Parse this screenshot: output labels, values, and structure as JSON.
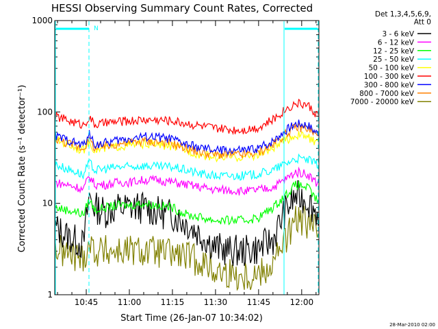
{
  "chart_data": {
    "type": "line",
    "title": "HESSI Observing Summary Count Rates, Corrected",
    "xlabel": "Start Time (26-Jan-07 10:34:02)",
    "ylabel": "Corrected Count Rate (s⁻¹ detector⁻¹)",
    "yscale": "log",
    "ylim": [
      1,
      1000
    ],
    "xlim": [
      "10:34:02",
      "12:06:00"
    ],
    "x_ticks": [
      "10:45",
      "11:00",
      "11:15",
      "11:30",
      "11:45",
      "12:00"
    ],
    "y_ticks": [
      "1",
      "10",
      "100",
      "1000"
    ],
    "legend_title": [
      "Det 1,3,4,5,6,9,",
      "Att 0"
    ],
    "legend_position": "right",
    "x": [
      "10:34",
      "10:38",
      "10:42",
      "10:44",
      "10:46",
      "10:48",
      "10:52",
      "10:56",
      "11:00",
      "11:05",
      "11:10",
      "11:15",
      "11:20",
      "11:25",
      "11:30",
      "11:35",
      "11:40",
      "11:45",
      "11:50",
      "11:54",
      "11:58",
      "12:02",
      "12:05"
    ],
    "series": [
      {
        "name": "3 - 6 keV",
        "color": "#000000",
        "values": [
          5.5,
          4.5,
          3.8,
          3.5,
          12,
          9,
          8,
          9,
          9,
          9,
          8,
          7.5,
          6,
          4.5,
          3.3,
          3.0,
          3.0,
          3.2,
          4,
          8,
          12,
          11,
          8
        ]
      },
      {
        "name": "6 - 12 keV",
        "color": "#ff00ff",
        "values": [
          17,
          16,
          15,
          14,
          20,
          16,
          16,
          17,
          17,
          18,
          18,
          17,
          16,
          15,
          14,
          14,
          13.5,
          14,
          15,
          18,
          22,
          21,
          17
        ]
      },
      {
        "name": "12 - 25 keV",
        "color": "#00ff00",
        "values": [
          9,
          8.5,
          8,
          7.5,
          11,
          8.5,
          9,
          9.5,
          9.5,
          10,
          9.5,
          9,
          7.5,
          7,
          6.5,
          6.5,
          6.5,
          7,
          9,
          12,
          16,
          15,
          11
        ]
      },
      {
        "name": "25 - 50 keV",
        "color": "#00ffff",
        "values": [
          27,
          24,
          22,
          20,
          28,
          23,
          24,
          25,
          25,
          26,
          25,
          25,
          23,
          21,
          20,
          20,
          20,
          21,
          23,
          27,
          31,
          30,
          27
        ]
      },
      {
        "name": "50 - 100 keV",
        "color": "#ffff00",
        "values": [
          50,
          45,
          40,
          38,
          48,
          38,
          40,
          42,
          43,
          45,
          44,
          42,
          38,
          34,
          32,
          32,
          32,
          34,
          40,
          48,
          56,
          54,
          45
        ]
      },
      {
        "name": "100 - 300 keV",
        "color": "#ff0000",
        "values": [
          90,
          82,
          75,
          72,
          87,
          72,
          76,
          78,
          80,
          82,
          82,
          80,
          75,
          70,
          66,
          64,
          64,
          68,
          82,
          105,
          125,
          120,
          95
        ]
      },
      {
        "name": "300 - 800 keV",
        "color": "#0000ff",
        "values": [
          55,
          50,
          45,
          43,
          57,
          44,
          46,
          49,
          51,
          54,
          53,
          50,
          44,
          40,
          38,
          38,
          38,
          40,
          48,
          62,
          75,
          73,
          60
        ]
      },
      {
        "name": "800 - 7000 keV",
        "color": "#ff8000",
        "values": [
          52,
          46,
          42,
          40,
          50,
          40,
          42,
          45,
          46,
          48,
          47,
          45,
          40,
          36,
          34,
          34,
          34,
          36,
          44,
          56,
          68,
          66,
          56
        ]
      },
      {
        "name": "7000 - 20000 keV",
        "color": "#808000",
        "values": [
          3.2,
          2.8,
          2.6,
          2.5,
          3.8,
          3.0,
          3.0,
          3.0,
          3.0,
          3.0,
          2.9,
          2.8,
          2.6,
          2.3,
          1.8,
          1.7,
          1.6,
          1.7,
          2.2,
          3.8,
          6.5,
          6.2,
          5.0
        ]
      }
    ],
    "marker_label": "N"
  },
  "footer_date": "28-Mar-2010 02:00"
}
